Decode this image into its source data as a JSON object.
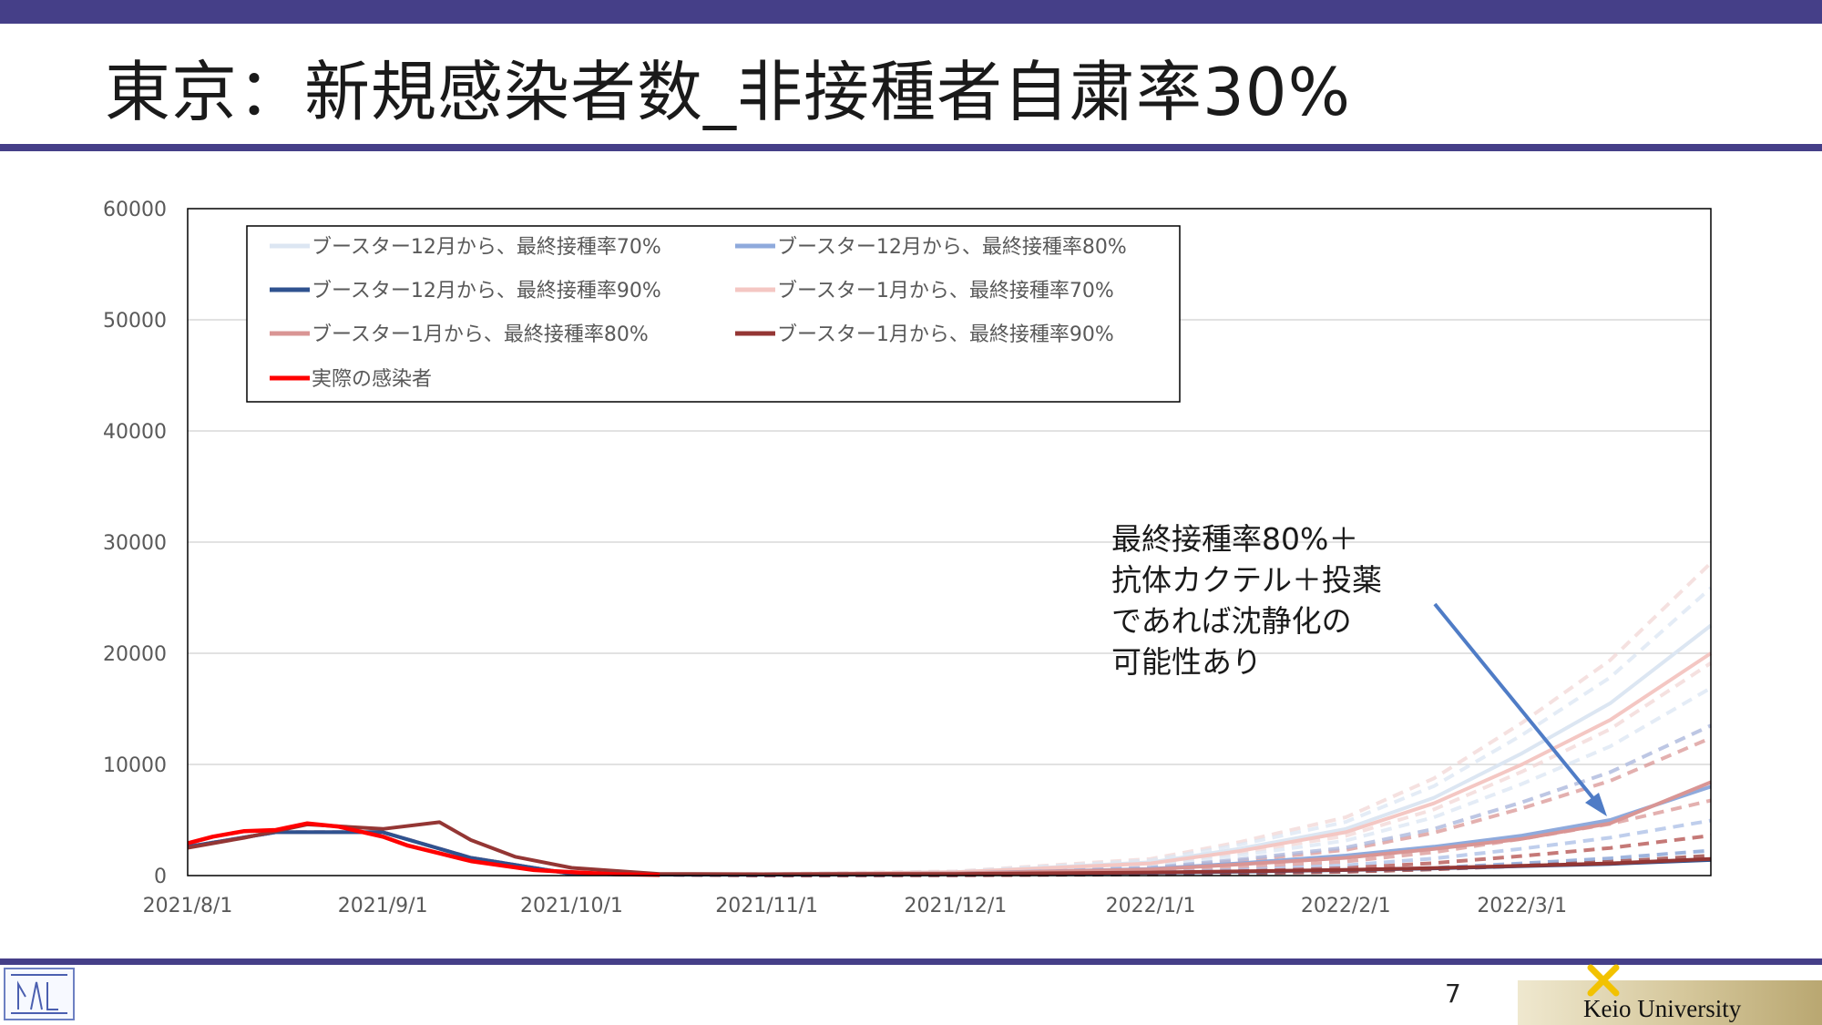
{
  "slide": {
    "title": "東京：新規感染者数_非接種者自粛率30%",
    "page_number": "7",
    "footer_brand": "Keio University"
  },
  "colors": {
    "accent_bar": "#453f88"
  },
  "annotation": {
    "lines": [
      "最終接種率80%＋",
      "抗体カクテル＋投薬",
      "であれば沈静化の",
      "可能性あり"
    ],
    "arrow_color": "#4f7cc6"
  },
  "chart_data": {
    "type": "line",
    "ylim": [
      0,
      60000
    ],
    "y_ticks": [
      "60000",
      "50000",
      "40000",
      "30000",
      "20000",
      "10000",
      "0"
    ],
    "x_ticks": [
      "2021/8/1",
      "2021/9/1",
      "2021/10/1",
      "2021/11/1",
      "2021/12/1",
      "2022/1/1",
      "2022/2/1",
      "2022/3/1"
    ],
    "x_range": [
      "2021-08-01",
      "2022-03-31"
    ],
    "grid": true,
    "legend_position": "top-left",
    "series": [
      {
        "name": "ブースター12月から、最終接種率70%",
        "color": "#dce6f2",
        "x": [
          "2021-08-01",
          "2021-08-15",
          "2021-09-01",
          "2021-09-15",
          "2021-10-01",
          "2021-10-15",
          "2021-11-01",
          "2021-12-01",
          "2022-01-01",
          "2022-01-15",
          "2022-02-01",
          "2022-02-15",
          "2022-03-01",
          "2022-03-15",
          "2022-03-31"
        ],
        "values": [
          2600,
          3900,
          3900,
          1600,
          150,
          80,
          120,
          300,
          1200,
          2400,
          4200,
          7000,
          11000,
          15500,
          22500
        ]
      },
      {
        "name": "ブースター12月から、最終接種率80%",
        "color": "#8faadc",
        "x": [
          "2021-08-01",
          "2021-08-15",
          "2021-09-01",
          "2021-09-15",
          "2021-10-01",
          "2021-10-15",
          "2021-11-01",
          "2021-12-01",
          "2022-01-01",
          "2022-01-15",
          "2022-02-01",
          "2022-02-15",
          "2022-03-01",
          "2022-03-15",
          "2022-03-31"
        ],
        "values": [
          2600,
          3900,
          3900,
          1600,
          150,
          80,
          100,
          200,
          600,
          1100,
          1800,
          2600,
          3600,
          5000,
          8000
        ]
      },
      {
        "name": "ブースター12月から、最終接種率90%",
        "color": "#2f528f",
        "x": [
          "2021-08-01",
          "2021-08-15",
          "2021-09-01",
          "2021-09-15",
          "2021-10-01",
          "2021-10-15",
          "2021-11-01",
          "2021-12-01",
          "2022-01-01",
          "2022-01-15",
          "2022-02-01",
          "2022-02-15",
          "2022-03-01",
          "2022-03-15",
          "2022-03-31"
        ],
        "values": [
          2600,
          3900,
          3900,
          1600,
          150,
          80,
          80,
          120,
          250,
          350,
          500,
          650,
          850,
          1050,
          1400
        ]
      },
      {
        "name": "ブースター1月から、最終接種率70%",
        "color": "#f4c7c3",
        "x": [
          "2021-08-01",
          "2021-08-15",
          "2021-09-01",
          "2021-09-15",
          "2021-10-01",
          "2021-10-15",
          "2021-11-01",
          "2021-12-01",
          "2022-01-01",
          "2022-01-15",
          "2022-02-01",
          "2022-02-15",
          "2022-03-01",
          "2022-03-15",
          "2022-03-31"
        ],
        "values": [
          2600,
          3900,
          3900,
          1600,
          150,
          80,
          120,
          300,
          1100,
          2200,
          3900,
          6500,
          10000,
          14000,
          20000
        ]
      },
      {
        "name": "ブースター1月から、最終接種率80%",
        "color": "#d99594",
        "x": [
          "2021-08-01",
          "2021-08-15",
          "2021-09-01",
          "2021-09-15",
          "2021-10-01",
          "2021-10-15",
          "2021-11-01",
          "2021-12-01",
          "2022-01-01",
          "2022-01-15",
          "2022-02-01",
          "2022-02-15",
          "2022-03-01",
          "2022-03-15",
          "2022-03-31"
        ],
        "values": [
          2600,
          3900,
          3900,
          1600,
          150,
          80,
          100,
          200,
          550,
          1000,
          1600,
          2400,
          3300,
          4700,
          8400
        ]
      },
      {
        "name": "ブースター1月から、最終接種率90%",
        "color": "#943634",
        "x": [
          "2021-08-01",
          "2021-08-10",
          "2021-08-20",
          "2021-09-01",
          "2021-09-10",
          "2021-09-15",
          "2021-09-22",
          "2021-10-01",
          "2021-10-15",
          "2021-11-01",
          "2021-12-01",
          "2022-01-01",
          "2022-01-15",
          "2022-02-01",
          "2022-02-15",
          "2022-03-01",
          "2022-03-15",
          "2022-03-31"
        ],
        "values": [
          2500,
          3400,
          4600,
          4200,
          4800,
          3200,
          1700,
          700,
          150,
          120,
          150,
          280,
          380,
          520,
          680,
          880,
          1100,
          1500
        ]
      },
      {
        "name": "実際の感染者",
        "color": "#ff0000",
        "x": [
          "2021-08-01",
          "2021-08-05",
          "2021-08-10",
          "2021-08-15",
          "2021-08-20",
          "2021-08-25",
          "2021-09-01",
          "2021-09-05",
          "2021-09-10",
          "2021-09-15",
          "2021-09-20",
          "2021-09-25",
          "2021-10-01",
          "2021-10-08",
          "2021-10-15"
        ],
        "values": [
          2900,
          3500,
          4000,
          4100,
          4700,
          4400,
          3500,
          2700,
          2000,
          1300,
          900,
          500,
          300,
          120,
          60
        ]
      }
    ]
  }
}
